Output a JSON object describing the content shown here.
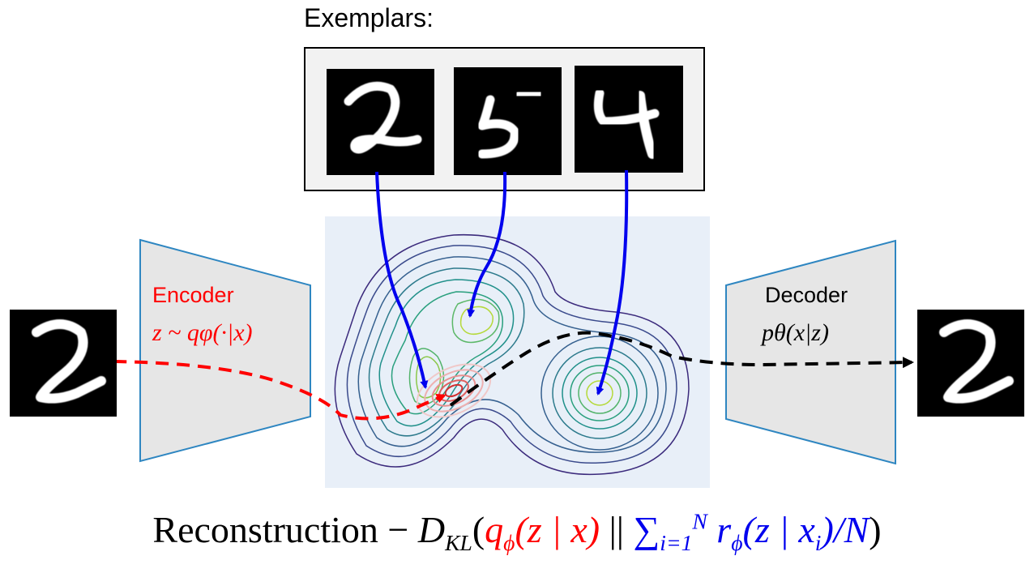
{
  "exemplars": {
    "title": "Exemplars:",
    "digits": [
      "2",
      "5",
      "4"
    ]
  },
  "encoder": {
    "title": "Encoder",
    "formula": "z ~ qφ(·|x)"
  },
  "decoder": {
    "title": "Decoder",
    "formula": "pθ(x|z)"
  },
  "input_digit": "2",
  "output_digit": "2",
  "formula": {
    "prefix": "Reconstruction − ",
    "dkl": "D",
    "dkl_sub": "KL",
    "q_term": "q",
    "q_sub": "ϕ",
    "q_args": "(z | x)",
    "sep": " || ",
    "sum": "∑",
    "sum_sub": "i=1",
    "sum_sup": "N",
    "r_term": " r",
    "r_sub": "ϕ",
    "r_args": "(z | x",
    "r_i": "i",
    "r_end": ")/N",
    "close": ")"
  },
  "colors": {
    "encoder": "#ff0000",
    "exemplar_arrows": "#0000ee",
    "decoder_path": "#000000",
    "panel": "#e8eff8",
    "trapezoid": "#e6e6e6",
    "trapezoid_edge": "#2e86c1"
  }
}
